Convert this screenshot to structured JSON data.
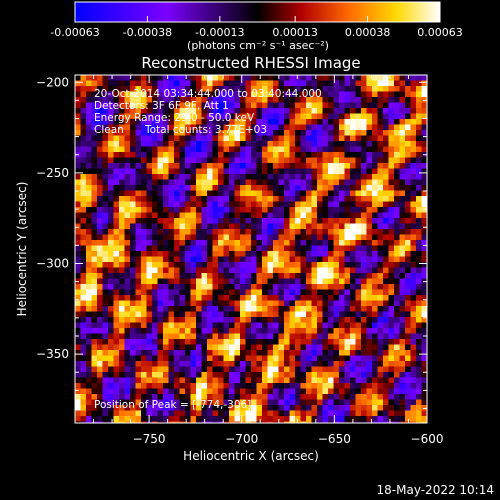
{
  "colorbar": {
    "tick_labels": [
      "-0.00063",
      "-0.00038",
      "-0.00013",
      "0.00013",
      "0.00038",
      "0.00063"
    ],
    "tick_values": [
      -0.00063,
      -0.00038,
      -0.00013,
      0.00013,
      0.00038,
      0.00063
    ],
    "range": [
      -0.00063,
      0.00063
    ],
    "unit_label": "(photons cm⁻² s⁻¹ asec⁻²)",
    "colors": [
      "#0000ff",
      "#7a00ff",
      "#000000",
      "#b00000",
      "#ff6a00",
      "#ffd800",
      "#ffffff"
    ]
  },
  "chart_data": {
    "type": "heatmap",
    "title": "Reconstructed RHESSI Image",
    "xlabel": "Heliocentric X (arcsec)",
    "ylabel": "Heliocentric Y (arcsec)",
    "xlim": [
      -790,
      -600
    ],
    "ylim": [
      -388,
      -196
    ],
    "x_ticks": [
      -750,
      -700,
      -650,
      -600
    ],
    "x_tick_labels": [
      "−750",
      "−700",
      "−650",
      "−600"
    ],
    "y_ticks": [
      -200,
      -250,
      -300,
      -350
    ],
    "y_tick_labels": [
      "−200",
      "−250",
      "−300",
      "−350"
    ],
    "annotations": {
      "time": "20-Oct-2014 03:34:44.000 to 03:40:44.000",
      "detectors": "Detectors: 3F 6F 9F, Att 1",
      "energy": "Energy Range: 25.0 - 50.0 keV",
      "method": "Clean",
      "counts": "Total counts: 3.77E+03",
      "peak": "Position of Peak = [-774,-306]"
    },
    "peak_position": [
      -774,
      -306
    ]
  },
  "footer": {
    "timestamp": "18-May-2022 10:14"
  }
}
